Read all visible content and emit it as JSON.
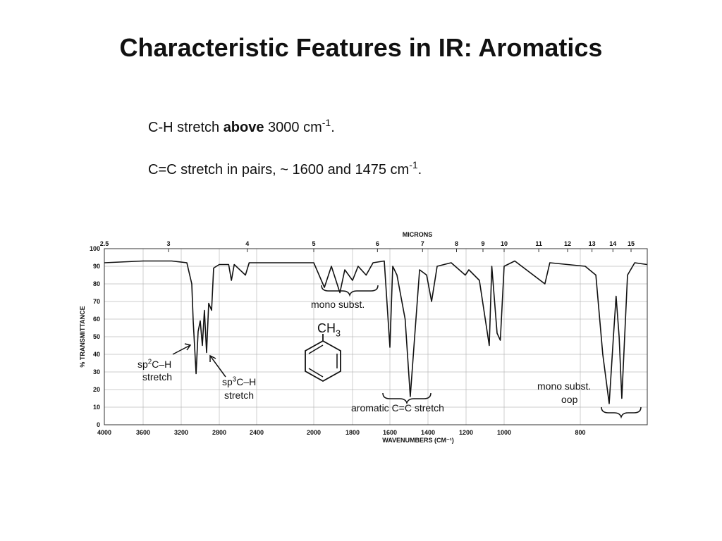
{
  "title": "Characteristic Features in IR: Aromatics",
  "bullets": [
    [
      {
        "text": "C-H stretch "
      },
      {
        "text": "above",
        "bold": true
      },
      {
        "text": " 3000 cm"
      },
      {
        "text": "-1",
        "sup": true
      },
      {
        "text": "."
      }
    ],
    [
      {
        "text": "C=C stretch in pairs, ~ 1600 and 1475 cm"
      },
      {
        "text": "-1",
        "sup": true
      },
      {
        "text": "."
      }
    ]
  ],
  "chart_data": {
    "type": "line",
    "x_label": "WAVENUMBERS (CM⁻¹)",
    "y_label": "% TRANSMITTANCE",
    "top_label": "MICRONS",
    "xlim": [
      4000,
      625
    ],
    "ylim": [
      0,
      100
    ],
    "xticks": [
      4000,
      3600,
      3200,
      2800,
      2400,
      2000,
      1800,
      1600,
      1400,
      1200,
      1000,
      800
    ],
    "yticks": [
      0,
      10,
      20,
      30,
      40,
      50,
      60,
      70,
      80,
      90,
      100
    ],
    "top_ticks": [
      2.5,
      3,
      4,
      5,
      6,
      7,
      8,
      9,
      10,
      11,
      12,
      13,
      14,
      15
    ],
    "grid": true,
    "x": [
      4000,
      3600,
      3300,
      3141,
      3089,
      3074,
      3044,
      3022,
      3000,
      2978,
      2956,
      2933,
      2911,
      2881,
      2859,
      2800,
      2700,
      2670,
      2640,
      2520,
      2480,
      2200,
      2000,
      1945,
      1909,
      1865,
      1840,
      1800,
      1770,
      1727,
      1690,
      1630,
      1600,
      1585,
      1563,
      1520,
      1493,
      1470,
      1444,
      1407,
      1381,
      1352,
      1278,
      1204,
      1185,
      1130,
      1078,
      1065,
      1037,
      1020,
      1000,
      972,
      893,
      880,
      787,
      776,
      759,
      741,
      724,
      713,
      706,
      698,
      691,
      676,
      657,
      625
    ],
    "series": [
      {
        "color": "#111111",
        "values": [
          92,
          93,
          93,
          92,
          80,
          59,
          29,
          53,
          59,
          45,
          65,
          41,
          69,
          65,
          89,
          91,
          91,
          82,
          91,
          85,
          92,
          92,
          92,
          78,
          90,
          75,
          88,
          82,
          90,
          85,
          92,
          93,
          44,
          90,
          85,
          60,
          16,
          50,
          88,
          85,
          70,
          90,
          92,
          85,
          88,
          82,
          45,
          90,
          52,
          48,
          90,
          93,
          80,
          92,
          90,
          88,
          85,
          40,
          12,
          50,
          73,
          50,
          15,
          85,
          92,
          91
        ]
      }
    ],
    "annotations": [
      {
        "lines": [
          [
            {
              "text": "mono subst."
            }
          ]
        ]
      },
      {
        "lines": [
          [
            {
              "text": "CH"
            },
            {
              "text": "3",
              "sub": true
            }
          ]
        ]
      },
      {
        "lines": [
          [
            {
              "text": "sp"
            },
            {
              "text": "2",
              "sup": true
            },
            {
              "text": "C–H"
            }
          ],
          [
            {
              "text": "stretch"
            }
          ]
        ]
      },
      {
        "lines": [
          [
            {
              "text": "sp"
            },
            {
              "text": "3",
              "sup": true
            },
            {
              "text": "C–H"
            }
          ],
          [
            {
              "text": "stretch"
            }
          ]
        ]
      },
      {
        "lines": [
          [
            {
              "text": "aromatic C=C stretch"
            }
          ]
        ]
      },
      {
        "lines": [
          [
            {
              "text": "mono subst."
            }
          ],
          [
            {
              "text": "oop"
            }
          ]
        ]
      }
    ]
  }
}
